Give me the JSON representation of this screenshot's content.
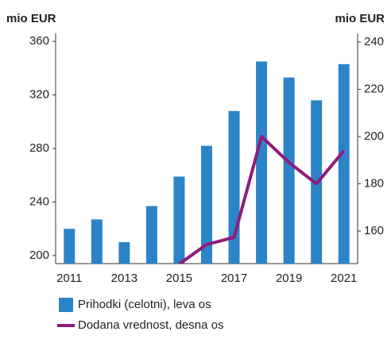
{
  "chart_data": {
    "type": "bar",
    "y_label": "mio EUR",
    "y2_label": "mio EUR",
    "categories": [
      "2011",
      null,
      "2013",
      null,
      "2015",
      null,
      "2017",
      null,
      "2019",
      null,
      "2021"
    ],
    "series": [
      {
        "name": "Prihodki (celotni), leva os",
        "color": "#2b84c8",
        "type": "bar",
        "values": [
          220,
          227,
          210,
          237,
          259,
          282,
          308,
          345,
          333,
          316,
          343
        ]
      },
      {
        "name": "Dodana vrednost, desna os",
        "color": "#8e1c7d",
        "type": "line",
        "axis": "y2",
        "values": [
          null,
          null,
          null,
          null,
          146,
          154.3,
          157.3,
          200,
          189,
          180,
          194
        ]
      }
    ],
    "ylim": [
      194,
      366
    ],
    "yticks": [
      200,
      240,
      280,
      320,
      360
    ],
    "y2lim": [
      146.2,
      243.7
    ],
    "y2ticks": [
      160,
      180,
      200,
      220,
      240
    ]
  }
}
